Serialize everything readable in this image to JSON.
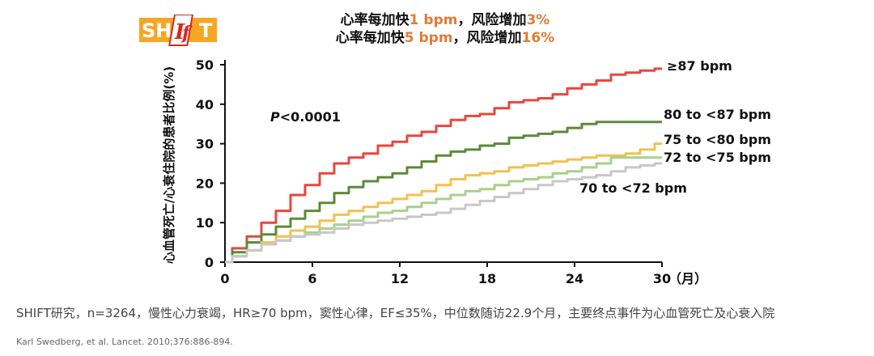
{
  "logo": {
    "letters_left": "SH",
    "letters_mid": "I",
    "letters_mid2": "f",
    "letters_right": "T",
    "colors": {
      "orange": "#f5a623",
      "red": "#d9261c",
      "white": "#ffffff"
    }
  },
  "header": {
    "line1": {
      "prefix": "心率每加快",
      "hr": "1 bpm",
      "mid": "，风险增加",
      "risk": "3%"
    },
    "line2": {
      "prefix": "心率每加快",
      "hr": "5 bpm",
      "mid": "，风险增加",
      "risk": "16%"
    }
  },
  "p_value": {
    "p": "P",
    "rest": "<0.0001"
  },
  "caption": "SHIFT研究，n=3264，慢性心力衰竭，HR≥70 bpm，窦性心律，EF≤35%，中位数随访22.9个月，主要终点事件为心血管死亡及心衰入院",
  "citation": "Karl Swedberg, et al. Lancet. 2010;376:886-894.",
  "chart_data": {
    "type": "line",
    "xlabel": "（月）",
    "ylabel": "心血管死亡/心衰住院的患者比例(%)",
    "xlim": [
      0,
      30
    ],
    "ylim": [
      0,
      50
    ],
    "xticks": [
      0,
      6,
      12,
      18,
      24,
      30
    ],
    "yticks": [
      0,
      10,
      20,
      30,
      40,
      50
    ],
    "grid": false,
    "series": [
      {
        "name": "≥87 bpm",
        "color": "#e8473e",
        "x": [
          0,
          1,
          2,
          3,
          4,
          5,
          6,
          7,
          8,
          9,
          10,
          11,
          12,
          13,
          14,
          15,
          16,
          17,
          18,
          19,
          20,
          21,
          22,
          23,
          24,
          25,
          26,
          27,
          28,
          29,
          30
        ],
        "y": [
          0,
          3.5,
          6.5,
          10,
          13,
          17,
          19.5,
          22.5,
          25,
          26.5,
          27.5,
          29.5,
          30.5,
          32,
          33,
          34.5,
          36,
          37,
          37.5,
          39,
          40.5,
          41,
          41.5,
          42.5,
          44,
          45,
          46,
          47.5,
          48,
          48.5,
          49
        ]
      },
      {
        "name": "80 to <87 bpm",
        "color": "#5c8a3a",
        "x": [
          0,
          1,
          2,
          3,
          4,
          5,
          6,
          7,
          8,
          9,
          10,
          11,
          12,
          13,
          14,
          15,
          16,
          17,
          18,
          19,
          20,
          21,
          22,
          23,
          24,
          25,
          26,
          27,
          28,
          29,
          30
        ],
        "y": [
          0,
          2.5,
          5,
          7,
          9,
          11,
          13,
          15,
          17.5,
          19,
          20.5,
          21.5,
          22.5,
          24,
          25.5,
          27,
          28,
          28.5,
          29.5,
          30,
          31.5,
          32,
          32.5,
          33,
          34,
          35,
          35.5,
          35.5,
          35.5,
          35.5,
          35.5
        ]
      },
      {
        "name": "75 to <80 bpm",
        "color": "#f2c14e",
        "x": [
          0,
          1,
          2,
          3,
          4,
          5,
          6,
          7,
          8,
          9,
          10,
          11,
          12,
          13,
          14,
          15,
          16,
          17,
          18,
          19,
          20,
          21,
          22,
          23,
          24,
          25,
          26,
          27,
          28,
          29,
          30
        ],
        "y": [
          0,
          1.5,
          3,
          5,
          6.5,
          8,
          9,
          10.5,
          12,
          13,
          14,
          15,
          16,
          17,
          18,
          19.5,
          21,
          22,
          22.5,
          23,
          24,
          24.5,
          25,
          25.5,
          26,
          26.5,
          27,
          27,
          27.5,
          28.5,
          30
        ]
      },
      {
        "name": "72 to <75 bpm",
        "color": "#a8d08d",
        "x": [
          0,
          1,
          2,
          3,
          4,
          5,
          6,
          7,
          8,
          9,
          10,
          11,
          12,
          13,
          14,
          15,
          16,
          17,
          18,
          19,
          20,
          21,
          22,
          23,
          24,
          25,
          26,
          27,
          28,
          29,
          30
        ],
        "y": [
          0,
          1.5,
          3,
          4.5,
          5.5,
          6.5,
          7.5,
          8.5,
          9.5,
          10.5,
          11.5,
          12.5,
          13,
          14,
          15,
          16,
          17,
          18,
          18.5,
          19.5,
          20.5,
          21,
          21.5,
          22.5,
          23,
          24,
          25,
          26.5,
          26.5,
          26.5,
          26.5
        ]
      },
      {
        "name": "70 to <72 bpm",
        "color": "#c8c8c8",
        "x": [
          0,
          1,
          2,
          3,
          4,
          5,
          6,
          7,
          8,
          9,
          10,
          11,
          12,
          13,
          14,
          15,
          16,
          17,
          18,
          19,
          20,
          21,
          22,
          23,
          24,
          25,
          26,
          27,
          28,
          29,
          30
        ],
        "y": [
          0,
          1.5,
          3,
          4.5,
          5.5,
          6.5,
          7,
          7.5,
          8.5,
          9.5,
          10,
          10.5,
          11,
          11.5,
          12,
          12.5,
          13.5,
          14.5,
          15.5,
          16.5,
          17.5,
          18.5,
          19.5,
          20.5,
          21,
          21.5,
          22,
          23,
          24,
          24.5,
          25
        ]
      }
    ]
  }
}
